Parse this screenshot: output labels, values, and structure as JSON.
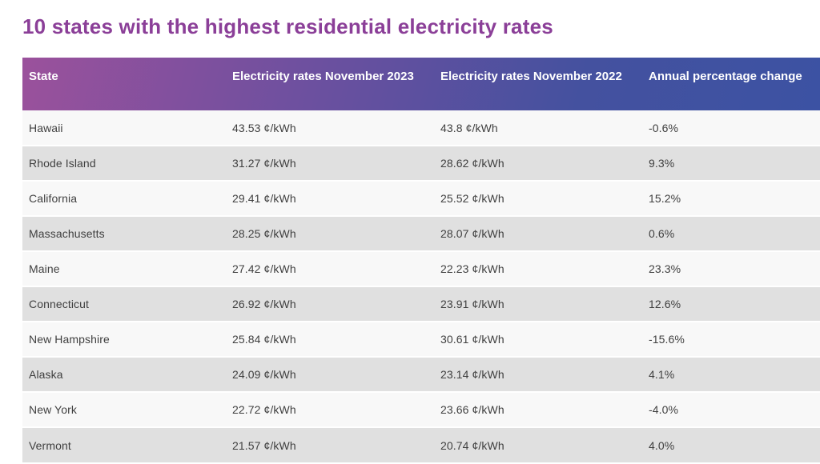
{
  "title": "10 states with the highest residential electricity rates",
  "colors": {
    "title_text": "#8b3f98",
    "header_gradient_start": "#9b519c",
    "header_gradient_end": "#3c52a3",
    "header_text": "#ffffff",
    "row_light": "#f8f8f8",
    "row_dark": "#e0e0e0",
    "cell_text": "#3f3f3f"
  },
  "table": {
    "columns": [
      "State",
      "Electricity rates November 2023",
      "Electricity rates November 2022",
      "Annual percentage change"
    ],
    "rows": [
      {
        "state": "Hawaii",
        "rate_2023": "43.53 ¢/kWh",
        "rate_2022": "43.8 ¢/kWh",
        "change": "-0.6%"
      },
      {
        "state": "Rhode Island",
        "rate_2023": "31.27 ¢/kWh",
        "rate_2022": "28.62 ¢/kWh",
        "change": "9.3%"
      },
      {
        "state": "California",
        "rate_2023": "29.41 ¢/kWh",
        "rate_2022": "25.52 ¢/kWh",
        "change": "15.2%"
      },
      {
        "state": "Massachusetts",
        "rate_2023": "28.25 ¢/kWh",
        "rate_2022": "28.07 ¢/kWh",
        "change": "0.6%"
      },
      {
        "state": "Maine",
        "rate_2023": "27.42 ¢/kWh",
        "rate_2022": "22.23 ¢/kWh",
        "change": "23.3%"
      },
      {
        "state": "Connecticut",
        "rate_2023": "26.92 ¢/kWh",
        "rate_2022": "23.91 ¢/kWh",
        "change": "12.6%"
      },
      {
        "state": "New Hampshire",
        "rate_2023": "25.84 ¢/kWh",
        "rate_2022": "30.61 ¢/kWh",
        "change": "-15.6%"
      },
      {
        "state": "Alaska",
        "rate_2023": "24.09 ¢/kWh",
        "rate_2022": "23.14 ¢/kWh",
        "change": "4.1%"
      },
      {
        "state": "New York",
        "rate_2023": "22.72 ¢/kWh",
        "rate_2022": "23.66 ¢/kWh",
        "change": "-4.0%"
      },
      {
        "state": "Vermont",
        "rate_2023": "21.57 ¢/kWh",
        "rate_2022": "20.74 ¢/kWh",
        "change": "4.0%"
      }
    ]
  },
  "chart_data": {
    "type": "table",
    "title": "10 states with the highest residential electricity rates",
    "columns": [
      "State",
      "Electricity rates November 2023 (¢/kWh)",
      "Electricity rates November 2022 (¢/kWh)",
      "Annual percentage change (%)"
    ],
    "rows": [
      [
        "Hawaii",
        43.53,
        43.8,
        -0.6
      ],
      [
        "Rhode Island",
        31.27,
        28.62,
        9.3
      ],
      [
        "California",
        29.41,
        25.52,
        15.2
      ],
      [
        "Massachusetts",
        28.25,
        28.07,
        0.6
      ],
      [
        "Maine",
        27.42,
        22.23,
        23.3
      ],
      [
        "Connecticut",
        26.92,
        23.91,
        12.6
      ],
      [
        "New Hampshire",
        25.84,
        30.61,
        -15.6
      ],
      [
        "Alaska",
        24.09,
        23.14,
        4.1
      ],
      [
        "New York",
        22.72,
        23.66,
        -4.0
      ],
      [
        "Vermont",
        21.57,
        20.74,
        4.0
      ]
    ],
    "unit": "¢/kWh",
    "layout_hints": {
      "alternating_row_shading": true,
      "header_gradient": "purple-to-blue"
    }
  }
}
